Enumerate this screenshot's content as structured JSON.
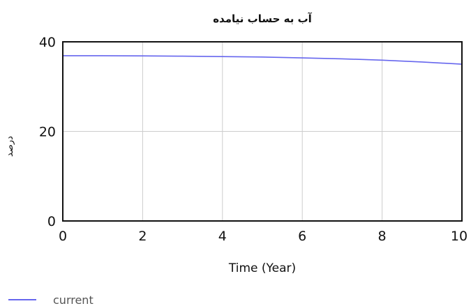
{
  "chart_data": {
    "type": "line",
    "title": "آب به حساب نیامده",
    "xlabel": "Time (Year)",
    "ylabel": "درصد",
    "xlim": [
      0,
      10
    ],
    "ylim": [
      0,
      40
    ],
    "x_ticks": [
      "0",
      "2",
      "4",
      "6",
      "8",
      "10"
    ],
    "y_ticks": [
      "0",
      "20",
      "40"
    ],
    "grid": true,
    "legend_position": "bottom-left",
    "series": [
      {
        "name": "current",
        "color": "#6666ee",
        "x": [
          0,
          1,
          2,
          3,
          4,
          5,
          6,
          7,
          8,
          9,
          10
        ],
        "y": [
          36.9,
          36.9,
          36.85,
          36.8,
          36.7,
          36.6,
          36.4,
          36.2,
          35.9,
          35.5,
          35.0
        ]
      }
    ]
  }
}
